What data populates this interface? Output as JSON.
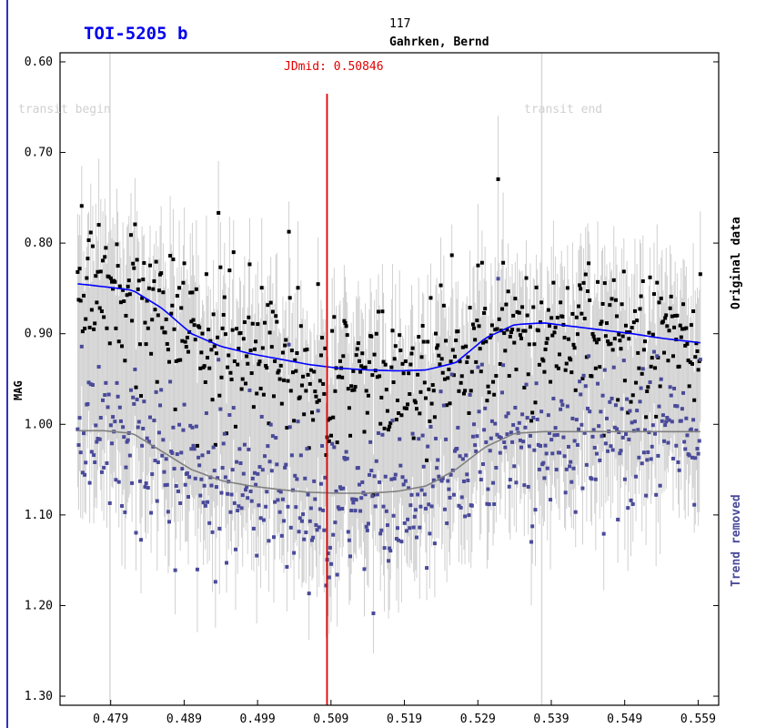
{
  "header": {
    "title": "TOI-5205 b",
    "observation_number": "117",
    "observer": "Gahrken, Bernd"
  },
  "labels": {
    "jdmid": "JDmid: 0.50846",
    "transit_begin": "transit begin",
    "transit_end": "transit end",
    "original_data": "Original data",
    "trend_removed": "Trend removed"
  },
  "colors": {
    "title": "#0000ee",
    "jdmid_line": "#e00000",
    "original_points": "#000000",
    "detrended_points": "#4a4a9a",
    "error_bars": "#d0d0d0",
    "trend_fit": "#0000ff",
    "model_fit": "#808080",
    "transit_markers": "#d8d8d8"
  },
  "chart_data": {
    "type": "scatter",
    "xlabel": "",
    "ylabel": "MAG",
    "xlim": [
      0.4721,
      0.5618
    ],
    "ylim": [
      1.31,
      0.59
    ],
    "y_inverted": true,
    "x_ticks": [
      "0.479",
      "0.489",
      "0.499",
      "0.509",
      "0.519",
      "0.529",
      "0.539",
      "0.549",
      "0.559"
    ],
    "y_ticks": [
      "0.60",
      "0.70",
      "0.80",
      "0.90",
      "1.00",
      "1.10",
      "1.20",
      "1.30"
    ],
    "jd_mid": 0.50846,
    "transit_begin": 0.4789,
    "transit_end": 0.5377,
    "obs_start": 0.4745,
    "obs_end": 0.5593,
    "trend_fit": {
      "x": [
        0.4745,
        0.478,
        0.482,
        0.486,
        0.49,
        0.494,
        0.498,
        0.502,
        0.506,
        0.51,
        0.514,
        0.518,
        0.522,
        0.526,
        0.53,
        0.534,
        0.538,
        0.542,
        0.546,
        0.55,
        0.554,
        0.5593
      ],
      "y": [
        0.845,
        0.848,
        0.852,
        0.872,
        0.9,
        0.914,
        0.922,
        0.928,
        0.934,
        0.938,
        0.94,
        0.941,
        0.94,
        0.932,
        0.905,
        0.89,
        0.888,
        0.892,
        0.896,
        0.9,
        0.905,
        0.91
      ]
    },
    "model_fit": {
      "x": [
        0.4745,
        0.478,
        0.482,
        0.486,
        0.49,
        0.494,
        0.498,
        0.502,
        0.506,
        0.51,
        0.514,
        0.518,
        0.522,
        0.526,
        0.53,
        0.534,
        0.538,
        0.542,
        0.546,
        0.55,
        0.554,
        0.5593
      ],
      "y": [
        1.007,
        1.007,
        1.01,
        1.03,
        1.05,
        1.062,
        1.068,
        1.072,
        1.075,
        1.076,
        1.076,
        1.074,
        1.068,
        1.05,
        1.025,
        1.01,
        1.008,
        1.008,
        1.008,
        1.008,
        1.008,
        1.008
      ]
    },
    "series": [
      {
        "name": "Original data",
        "n_points": 620,
        "scatter_sd": 0.042
      },
      {
        "name": "Trend removed",
        "n_points": 620,
        "scatter_sd": 0.042
      }
    ]
  }
}
